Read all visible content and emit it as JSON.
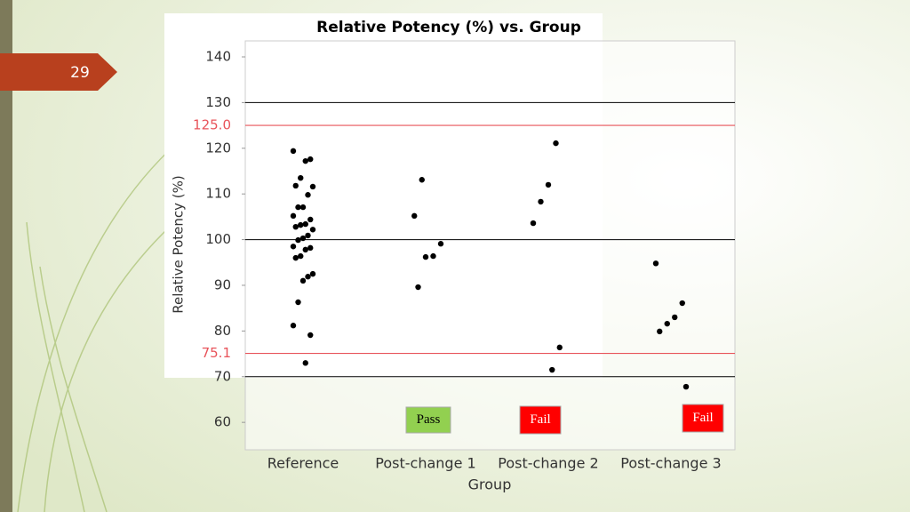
{
  "slide_number": "29",
  "chart_data": {
    "type": "strip",
    "title": "Relative Potency (%) vs. Group",
    "x_label": "Group",
    "y_label": "Relative Potency (%)",
    "categories": [
      "Reference",
      "Post-change 1",
      "Post-change 2",
      "Post-change 3"
    ],
    "values": [
      [
        119.4,
        117.6,
        117.2,
        113.5,
        111.8,
        111.6,
        109.8,
        107.1,
        107.1,
        105.2,
        104.4,
        103.4,
        103.2,
        102.8,
        102.2,
        100.9,
        100.3,
        99.9,
        98.5,
        98.2,
        97.8,
        96.4,
        96.0,
        92.5,
        91.9,
        91.0,
        86.3,
        81.2,
        79.1,
        73.0
      ],
      [
        113.1,
        105.2,
        99.1,
        96.4,
        96.2,
        89.6
      ],
      [
        121.1,
        112.0,
        108.3,
        103.6,
        76.4,
        71.5
      ],
      [
        94.8,
        86.1,
        83.0,
        81.6,
        79.9,
        67.8
      ]
    ],
    "color": "#000000",
    "ylim": [
      54,
      143.5
    ],
    "yticks": [
      60,
      70,
      80,
      90,
      100,
      110,
      120,
      130,
      140
    ],
    "hlines": [
      130,
      100,
      70
    ],
    "reference_lines": [
      {
        "value": 125.0,
        "label": "125.0",
        "color": "#e8535a"
      },
      {
        "value": 75.1,
        "label": "75.1",
        "color": "#e8535a"
      }
    ],
    "annotations": [
      {
        "text": "Pass",
        "color": "#92d050"
      },
      {
        "text": "Fail",
        "color": "#ff0000"
      },
      {
        "text": "Fail",
        "color": "#ff0000"
      }
    ]
  }
}
